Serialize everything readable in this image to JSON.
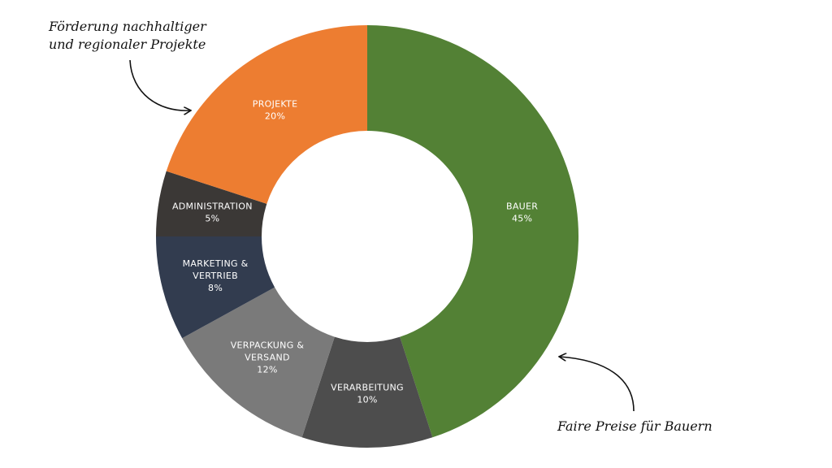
{
  "annotations": {
    "top": [
      "Förderung nachhaltiger",
      "und regionaler Projekte"
    ],
    "bottom": "Faire Preise für Bauern"
  },
  "chart_data": {
    "type": "pie",
    "style": "donut",
    "start": "top",
    "direction": "clockwise",
    "slices": [
      {
        "label": [
          "BAUER"
        ],
        "value": 45,
        "value_label": "45%",
        "color": "#538135"
      },
      {
        "label": [
          "VERARBEITUNG"
        ],
        "value": 10,
        "value_label": "10%",
        "color": "#4d4d4d"
      },
      {
        "label": [
          "VERPACKUNG &",
          "VERSAND"
        ],
        "value": 12,
        "value_label": "12%",
        "color": "#7a7a7a"
      },
      {
        "label": [
          "MARKETING &",
          "VERTRIEB"
        ],
        "value": 8,
        "value_label": "8%",
        "color": "#323c4f"
      },
      {
        "label": [
          "ADMINISTRATION"
        ],
        "value": 5,
        "value_label": "5%",
        "color": "#3b3836"
      },
      {
        "label": [
          "PROJEKTE"
        ],
        "value": 20,
        "value_label": "20%",
        "color": "#ed7d31"
      }
    ]
  }
}
